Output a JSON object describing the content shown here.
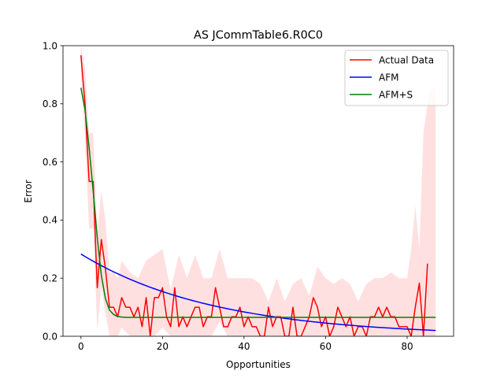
{
  "chart_data": {
    "type": "line",
    "title": "AS JCommTable6.R0C0",
    "xlabel": "Opportunities",
    "ylabel": "Error",
    "xlim": [
      -4.4,
      91.4
    ],
    "ylim": [
      0,
      1.0
    ],
    "xticks": [
      0,
      20,
      40,
      60,
      80
    ],
    "yticks": [
      0.0,
      0.2,
      0.4,
      0.6,
      0.8,
      1.0
    ],
    "xtick_labels": [
      "0",
      "20",
      "40",
      "60",
      "80"
    ],
    "ytick_labels": [
      "0.0",
      "0.2",
      "0.4",
      "0.6",
      "0.8",
      "1.0"
    ],
    "legend_position": "top-right",
    "grid": false,
    "series": [
      {
        "name": "Actual Data",
        "color": "#ff0000",
        "x": [
          0,
          1,
          2,
          3,
          4,
          5,
          6,
          7,
          8,
          9,
          10,
          11,
          12,
          13,
          14,
          15,
          16,
          17,
          18,
          19,
          20,
          21,
          22,
          23,
          24,
          25,
          26,
          27,
          28,
          29,
          30,
          31,
          32,
          33,
          34,
          35,
          36,
          37,
          38,
          39,
          40,
          41,
          42,
          43,
          44,
          45,
          46,
          47,
          48,
          49,
          50,
          51,
          52,
          53,
          54,
          55,
          56,
          57,
          58,
          59,
          60,
          61,
          62,
          63,
          64,
          65,
          66,
          67,
          68,
          69,
          70,
          71,
          72,
          73,
          74,
          75,
          76,
          77,
          78,
          79,
          80,
          81,
          82,
          83,
          84,
          85
        ],
        "y": [
          0.967,
          0.8,
          0.533,
          0.533,
          0.167,
          0.333,
          0.233,
          0.1,
          0.1,
          0.067,
          0.133,
          0.1,
          0.1,
          0.067,
          0.1,
          0.033,
          0.133,
          0.0,
          0.133,
          0.133,
          0.167,
          0.067,
          0.033,
          0.167,
          0.033,
          0.067,
          0.033,
          0.067,
          0.1,
          0.1,
          0.033,
          0.067,
          0.067,
          0.167,
          0.1,
          0.033,
          0.033,
          0.067,
          0.067,
          0.1,
          0.033,
          0.067,
          0.033,
          0.033,
          0.0,
          0.0,
          0.1,
          0.033,
          0.067,
          0.067,
          0.0,
          0.0,
          0.1,
          0.0,
          0.0,
          0.033,
          0.067,
          0.133,
          0.1,
          0.033,
          0.067,
          0.0,
          0.033,
          0.1,
          0.067,
          0.033,
          0.067,
          0.0,
          0.033,
          0.033,
          0.0,
          0.067,
          0.067,
          0.1,
          0.067,
          0.1,
          0.067,
          0.067,
          0.033,
          0.033,
          0.033,
          0.0,
          0.1,
          0.183,
          0.0,
          0.25
        ]
      },
      {
        "name": "AFM",
        "color": "#0000ff",
        "x_start": 0,
        "x_end": 87,
        "y_start": 0.283,
        "y_end": 0.02
      },
      {
        "name": "AFM+S",
        "color": "#008000",
        "x": [
          0,
          1,
          2,
          3,
          4,
          5,
          6,
          7,
          8,
          9,
          10,
          11,
          12,
          15,
          20,
          30,
          40,
          50,
          60,
          70,
          80,
          87
        ],
        "y": [
          0.855,
          0.78,
          0.65,
          0.5,
          0.34,
          0.21,
          0.13,
          0.09,
          0.075,
          0.068,
          0.066,
          0.065,
          0.065,
          0.065,
          0.065,
          0.065,
          0.065,
          0.065,
          0.065,
          0.065,
          0.065,
          0.065
        ]
      }
    ],
    "confidence_band": {
      "color": "#ffcccc",
      "x": [
        0,
        1,
        2,
        3,
        4,
        5,
        6,
        7,
        8,
        9,
        10,
        12,
        14,
        16,
        18,
        20,
        22,
        24,
        26,
        28,
        30,
        32,
        34,
        36,
        38,
        40,
        42,
        44,
        46,
        48,
        50,
        52,
        54,
        56,
        58,
        60,
        62,
        64,
        66,
        68,
        70,
        72,
        74,
        76,
        78,
        80,
        81,
        82,
        83,
        84,
        85,
        86,
        87
      ],
      "upper": [
        1.0,
        0.92,
        0.7,
        0.7,
        0.35,
        0.5,
        0.4,
        0.22,
        0.22,
        0.2,
        0.26,
        0.22,
        0.2,
        0.26,
        0.28,
        0.3,
        0.16,
        0.28,
        0.2,
        0.28,
        0.2,
        0.2,
        0.3,
        0.2,
        0.2,
        0.2,
        0.2,
        0.18,
        0.12,
        0.2,
        0.12,
        0.18,
        0.2,
        0.14,
        0.24,
        0.2,
        0.18,
        0.2,
        0.18,
        0.12,
        0.18,
        0.2,
        0.2,
        0.22,
        0.2,
        0.2,
        0.3,
        0.45,
        0.3,
        0.7,
        0.8,
        0.85,
        0.86
      ],
      "lower": [
        0.9,
        0.68,
        0.37,
        0.37,
        0.02,
        0.17,
        0.08,
        0.0,
        0.0,
        0.0,
        0.03,
        0.0,
        0.0,
        0.0,
        0.0,
        0.03,
        0.0,
        0.0,
        0.0,
        0.0,
        0.0,
        0.0,
        0.05,
        0.0,
        0.0,
        0.0,
        0.0,
        0.0,
        0.0,
        0.0,
        0.0,
        0.0,
        0.0,
        0.0,
        0.0,
        0.0,
        0.0,
        0.0,
        0.0,
        0.0,
        0.0,
        0.0,
        0.0,
        0.0,
        0.0,
        0.0,
        0.0,
        0.0,
        0.0,
        0.0,
        0.0,
        0.0,
        0.0
      ]
    }
  }
}
